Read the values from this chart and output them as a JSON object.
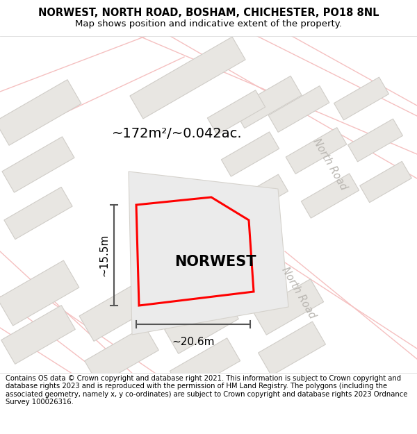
{
  "title_line1": "NORWEST, NORTH ROAD, BOSHAM, CHICHESTER, PO18 8NL",
  "title_line2": "Map shows position and indicative extent of the property.",
  "footer_text": "Contains OS data © Crown copyright and database right 2021. This information is subject to Crown copyright and database rights 2023 and is reproduced with the permission of HM Land Registry. The polygons (including the associated geometry, namely x, y co-ordinates) are subject to Crown copyright and database rights 2023 Ordnance Survey 100026316.",
  "area_label": "~172m²/~0.042ac.",
  "width_label": "~20.6m",
  "height_label": "~15.5m",
  "property_label": "NORWEST",
  "road_label": "North Road",
  "map_bg": "#f9f8f6",
  "building_fill": "#e8e6e2",
  "building_edge": "#d0cdc8",
  "road_line_color": "#f5c0c0",
  "road_label_color": "#b8b5b0",
  "title_fontsize": 10.5,
  "subtitle_fontsize": 9.5,
  "footer_fontsize": 7.2,
  "area_fontsize": 14,
  "property_label_fontsize": 15,
  "measurement_fontsize": 11,
  "road_label_fontsize": 10.5
}
